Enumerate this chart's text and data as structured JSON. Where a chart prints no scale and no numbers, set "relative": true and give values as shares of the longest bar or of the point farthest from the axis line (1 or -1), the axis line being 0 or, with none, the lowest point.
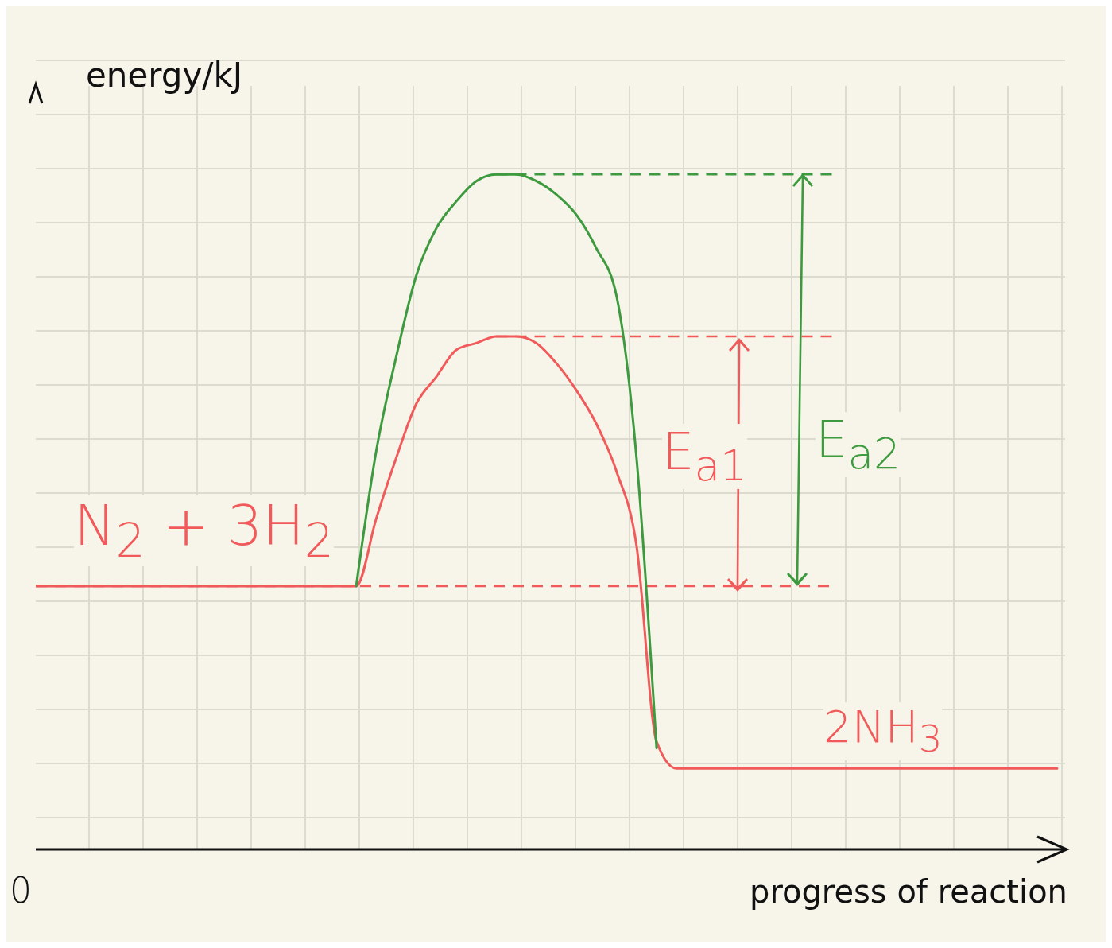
{
  "chart_data": {
    "type": "line",
    "relative": true,
    "xlabel": "progress of reaction",
    "ylabel": "energy/kJ",
    "categories": [
      null,
      null,
      null,
      null,
      null,
      null,
      null,
      null,
      null,
      null,
      null,
      null,
      null,
      null,
      null,
      null,
      null,
      null,
      null,
      null,
      null,
      null,
      null,
      null,
      null,
      null,
      null,
      null,
      null,
      null,
      null,
      null,
      null,
      null,
      null,
      null,
      null,
      null,
      null,
      null,
      null,
      null,
      null,
      null,
      null,
      null,
      null,
      null,
      null,
      null,
      null,
      null
    ],
    "series": [
      {
        "color": "#f05a5a",
        "values": [
          0.39,
          0.39,
          0.39,
          0.39,
          0.39,
          0.39,
          0.39,
          0.39,
          0.39,
          0.39,
          0.39,
          0.39,
          0.39,
          0.39,
          0.39,
          0.39,
          0.39,
          0.49,
          0.58,
          0.66,
          0.7,
          0.74,
          0.75,
          0.76,
          0.76,
          0.75,
          0.72,
          0.68,
          0.63,
          0.56,
          0.45,
          0.16,
          0.12,
          0.12,
          0.12,
          0.12,
          0.12,
          0.12,
          0.12,
          0.12,
          0.12,
          0.12,
          0.12,
          0.12,
          0.12,
          0.12,
          0.12,
          0.12,
          0.12,
          0.12,
          0.12,
          0.12
        ]
      },
      {
        "color": "#3e9a3e",
        "values": [
          null,
          null,
          null,
          null,
          null,
          null,
          null,
          null,
          null,
          null,
          null,
          null,
          null,
          null,
          null,
          null,
          0.39,
          0.59,
          0.73,
          0.85,
          0.92,
          0.96,
          0.99,
          1,
          1,
          0.99,
          0.97,
          0.94,
          0.89,
          0.82,
          0.58,
          0.15,
          null,
          null,
          null,
          null,
          null,
          null,
          null,
          null,
          null,
          null,
          null,
          null,
          null,
          null,
          null,
          null,
          null,
          null,
          null,
          null
        ]
      }
    ],
    "ref_lines": [
      {
        "axis": "y",
        "value": 0.39,
        "color": "#f05a5a",
        "line_style": "dashed"
      },
      {
        "axis": "y",
        "value": 0.76,
        "color": "#f05a5a",
        "line_style": "dashed"
      },
      {
        "axis": "y",
        "value": 1,
        "color": "#3e9a3e",
        "line_style": "dashed"
      }
    ],
    "annotations": [
      "N$_{2}$ + 3H$_{2}$",
      "E$_{a1}$",
      "E$_{a2}$",
      "2NH$_{3}$",
      "0"
    ],
    "grid": true,
    "legend": false,
    "marker": "none",
    "line_style": "solid"
  }
}
